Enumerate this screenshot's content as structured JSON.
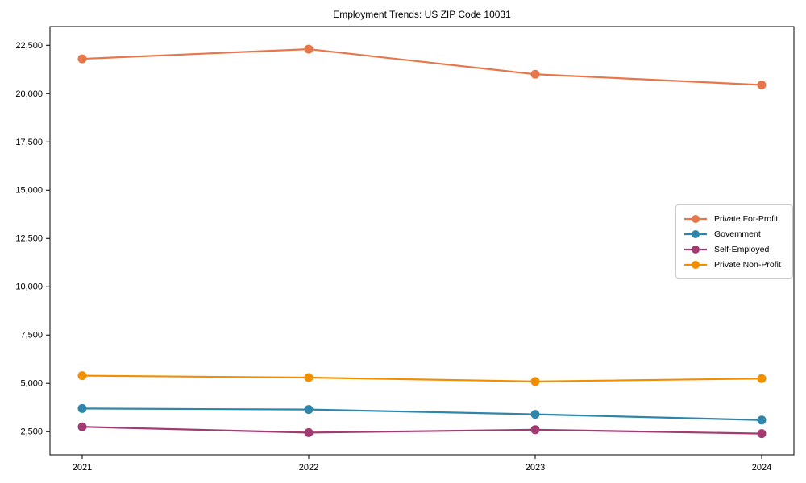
{
  "title": "Employment Trends: US ZIP Code 10031",
  "chart_data": {
    "type": "line",
    "title": "Employment Trends: US ZIP Code 10031",
    "xlabel": "",
    "ylabel": "",
    "categories": [
      "2021",
      "2022",
      "2023",
      "2024"
    ],
    "series": [
      {
        "name": "Private For-Profit",
        "color": "#E8764B",
        "values": [
          21800,
          22300,
          21000,
          20450
        ]
      },
      {
        "name": "Government",
        "color": "#2E86AB",
        "values": [
          3700,
          3650,
          3400,
          3100
        ]
      },
      {
        "name": "Self-Employed",
        "color": "#A23B72",
        "values": [
          2750,
          2450,
          2600,
          2400
        ]
      },
      {
        "name": "Private Non-Profit",
        "color": "#F18F01",
        "values": [
          5400,
          5300,
          5100,
          5250
        ]
      }
    ],
    "ylim": [
      1300,
      23470
    ],
    "yticks": [
      2500,
      5000,
      7500,
      10000,
      12500,
      15000,
      17500,
      20000,
      22500
    ],
    "ytick_labels": [
      "2,500",
      "5,000",
      "7,500",
      "10,000",
      "12,500",
      "15,000",
      "17,500",
      "20,000",
      "22,500"
    ],
    "grid": false,
    "legend_position": "center-right",
    "marker": "circle",
    "axis_color": "#000000"
  }
}
